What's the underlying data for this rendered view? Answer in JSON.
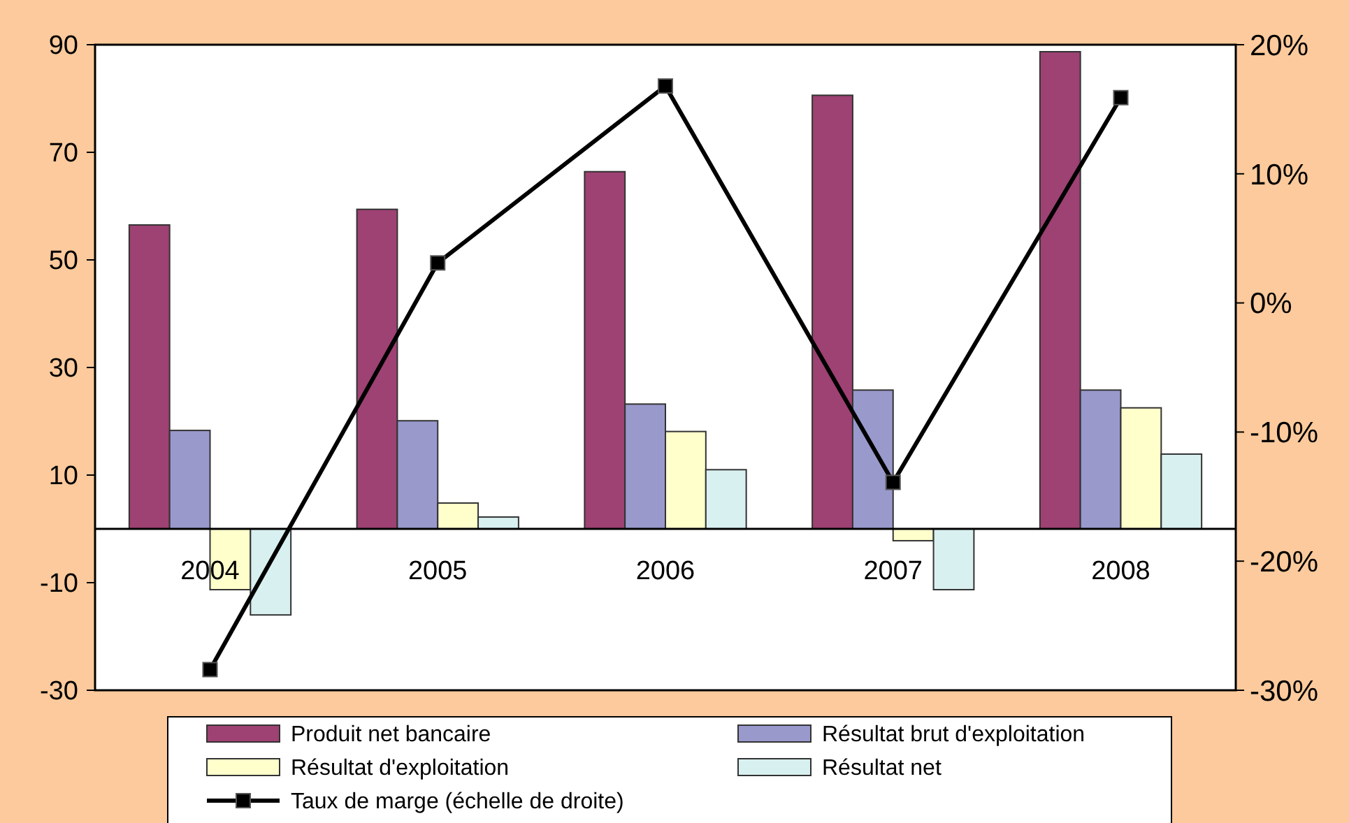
{
  "chart_data": {
    "type": "bar",
    "categories": [
      "2004",
      "2005",
      "2006",
      "2007",
      "2008"
    ],
    "series": [
      {
        "name": "Produit net bancaire",
        "color": "#9e4173",
        "values": [
          56.5,
          59.4,
          66.4,
          80.6,
          88.7
        ]
      },
      {
        "name": "Résultat brut d'exploitation",
        "color": "#9999cc",
        "values": [
          18.3,
          20.1,
          23.2,
          25.8,
          25.8
        ]
      },
      {
        "name": "Résultat d'exploitation",
        "color": "#ffffcc",
        "values": [
          -11.3,
          4.8,
          18.1,
          -2.2,
          22.5
        ]
      },
      {
        "name": "Résultat net",
        "color": "#d9f0f0",
        "values": [
          -16,
          2.2,
          11,
          -11.3,
          13.9
        ]
      },
      {
        "name": "Taux de marge (échelle de droite)",
        "type": "line",
        "axis": "y2",
        "color": "#000000",
        "marker": "square",
        "values": [
          -28.4,
          3.1,
          16.8,
          -13.9,
          15.9
        ]
      }
    ],
    "ylim": [
      -30,
      90
    ],
    "yticks": [
      -30,
      -10,
      10,
      30,
      50,
      70,
      90
    ],
    "y2lim": [
      -30,
      20
    ],
    "y2ticks": [
      {
        "value": -30,
        "label": "-30%"
      },
      {
        "value": -20,
        "label": "-20%"
      },
      {
        "value": -10,
        "label": "-10%"
      },
      {
        "value": 0,
        "label": "0%"
      },
      {
        "value": 10,
        "label": "10%"
      },
      {
        "value": 20,
        "label": "20%"
      }
    ],
    "grid": false,
    "legend": "bottom"
  }
}
